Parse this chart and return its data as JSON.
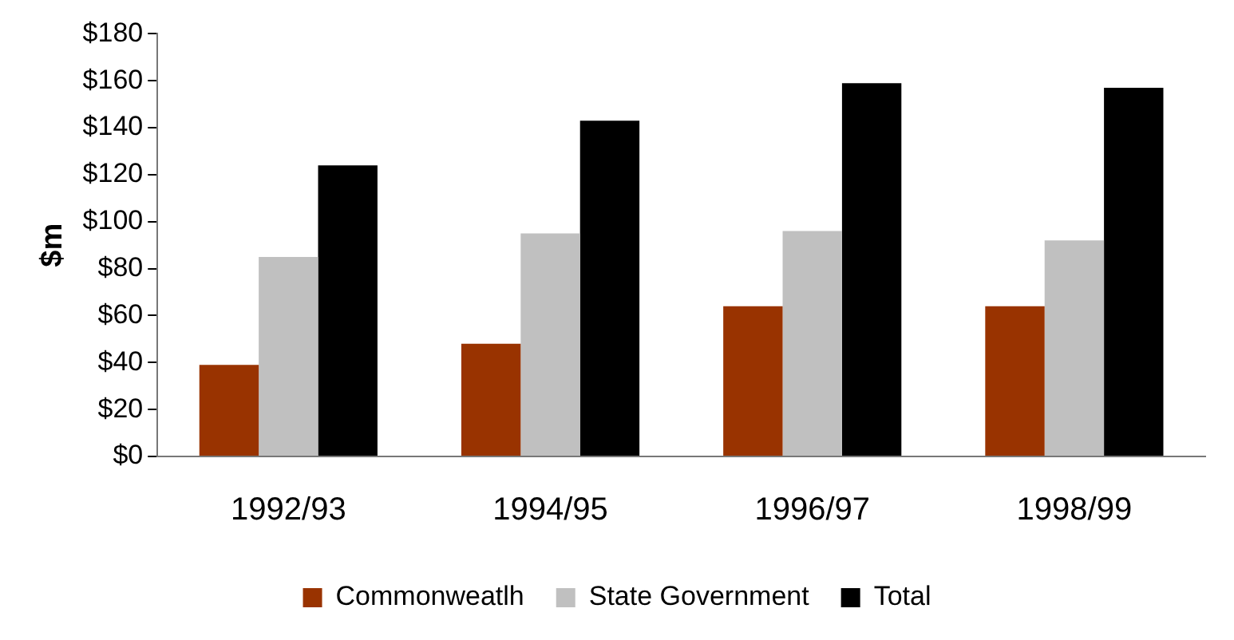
{
  "chart_data": {
    "type": "bar",
    "ylabel": "$m",
    "categories": [
      "1992/93",
      "1994/95",
      "1996/97",
      "1998/99"
    ],
    "series": [
      {
        "name": "Commonweatlh",
        "color": "#993300",
        "values": [
          39,
          48,
          64,
          64
        ]
      },
      {
        "name": "State Government",
        "color": "#c0c0c0",
        "values": [
          85,
          95,
          96,
          92
        ]
      },
      {
        "name": "Total",
        "color": "#000000",
        "values": [
          124,
          143,
          159,
          157
        ]
      }
    ],
    "ylim": [
      0,
      180
    ],
    "yticks": [
      {
        "value": 0,
        "label": "$0"
      },
      {
        "value": 20,
        "label": "$20"
      },
      {
        "value": 40,
        "label": "$40"
      },
      {
        "value": 60,
        "label": "$60"
      },
      {
        "value": 80,
        "label": "$80"
      },
      {
        "value": 100,
        "label": "$100"
      },
      {
        "value": 120,
        "label": "$120"
      },
      {
        "value": 140,
        "label": "$140"
      },
      {
        "value": 160,
        "label": "$160"
      },
      {
        "value": 180,
        "label": "$180"
      }
    ],
    "grid": false,
    "legend": "bottom"
  }
}
